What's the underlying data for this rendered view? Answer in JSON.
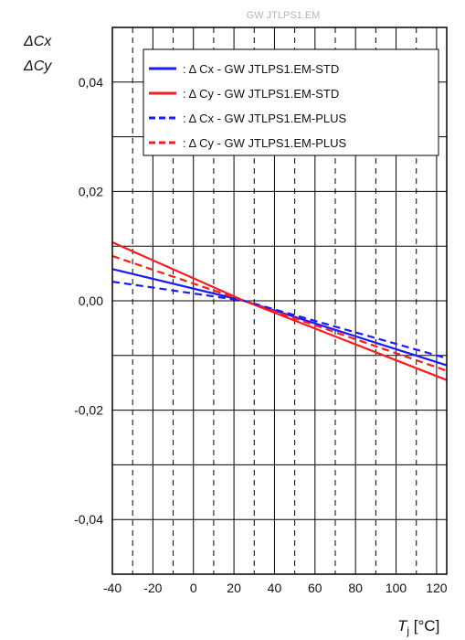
{
  "chart_data": {
    "type": "line",
    "title": "GW JTLPS1.EM",
    "ylabel_lines": [
      "ΔCx",
      "ΔCy"
    ],
    "xlabel_main": "T",
    "xlabel_sub": "j",
    "xlabel_unit": " [°C]",
    "xlim": [
      -40,
      125
    ],
    "ylim": [
      -0.05,
      0.05
    ],
    "x_ticks": [
      -40,
      -20,
      0,
      20,
      40,
      60,
      80,
      100,
      120
    ],
    "x_tick_labels": [
      "-40",
      "-20",
      "0",
      "20",
      "40",
      "60",
      "80",
      "100",
      "120"
    ],
    "y_ticks": [
      -0.04,
      -0.02,
      0.0,
      0.02,
      0.04
    ],
    "y_tick_labels": [
      "-0,04",
      "-0,02",
      "0,00",
      "0,02",
      "0,04"
    ],
    "grid": true,
    "legend_position": "top",
    "series": [
      {
        "name": "Δ Cx - GW JTLPS1.EM-STD",
        "color": "#1a1aff",
        "dash": "solid",
        "x": [
          -40,
          25,
          125
        ],
        "y": [
          0.0058,
          0.0,
          -0.0118
        ]
      },
      {
        "name": "Δ Cy - GW JTLPS1.EM-STD",
        "color": "#ff1a1a",
        "dash": "solid",
        "x": [
          -40,
          25,
          125
        ],
        "y": [
          0.0107,
          0.0,
          -0.0145
        ]
      },
      {
        "name": "Δ Cx - GW JTLPS1.EM-PLUS",
        "color": "#1a1aff",
        "dash": "dashed",
        "x": [
          -40,
          25,
          125
        ],
        "y": [
          0.0035,
          0.0,
          -0.0105
        ]
      },
      {
        "name": "Δ Cy - GW JTLPS1.EM-PLUS",
        "color": "#ff1a1a",
        "dash": "dashed",
        "x": [
          -40,
          25,
          125
        ],
        "y": [
          0.0082,
          0.0,
          -0.0128
        ]
      }
    ]
  }
}
